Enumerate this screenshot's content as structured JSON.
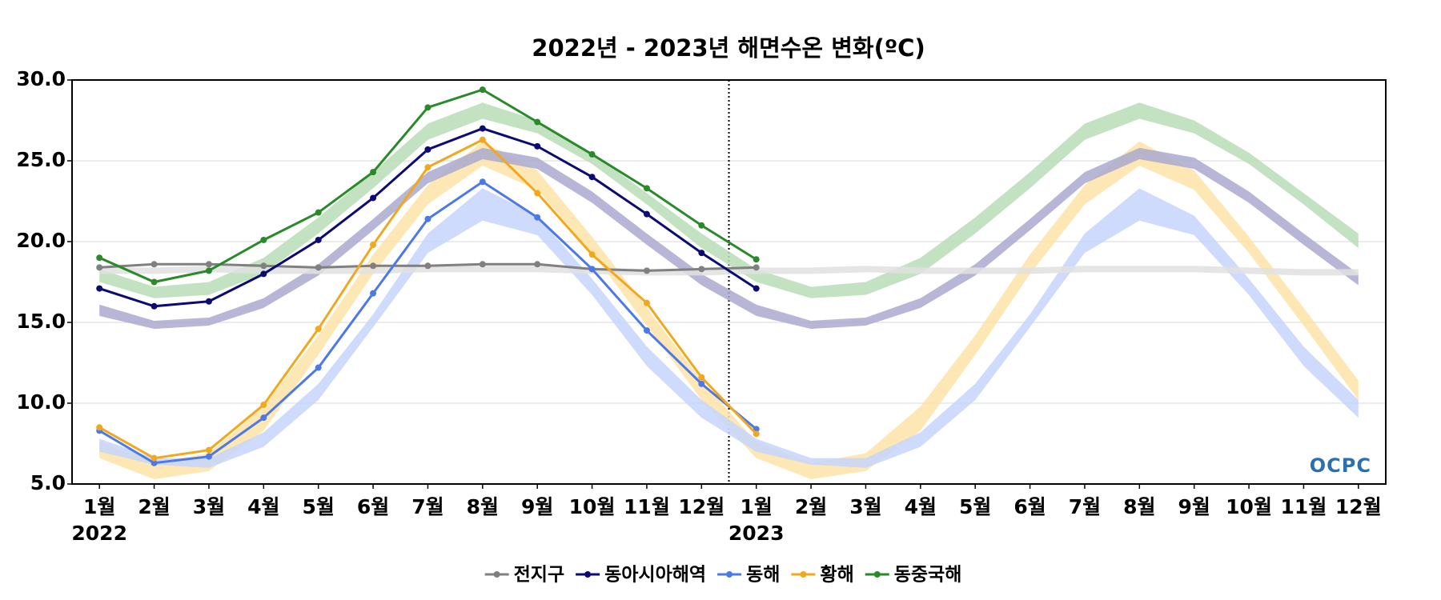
{
  "chart_data": {
    "type": "line",
    "title": "2022년 - 2023년 해면수온 변화(ºC)",
    "categories": [
      "1월",
      "2월",
      "3월",
      "4월",
      "5월",
      "6월",
      "7월",
      "8월",
      "9월",
      "10월",
      "11월",
      "12월",
      "1월",
      "2월",
      "3월",
      "4월",
      "5월",
      "6월",
      "7월",
      "8월",
      "9월",
      "10월",
      "11월",
      "12월"
    ],
    "groups": [
      "2022",
      "2023"
    ],
    "ylim": [
      5,
      30
    ],
    "yticks": [
      {
        "value": 5,
        "label": "5.0"
      },
      {
        "value": 10,
        "label": "10.0"
      },
      {
        "value": 15,
        "label": "15.0"
      },
      {
        "value": 20,
        "label": "20.0"
      },
      {
        "value": 25,
        "label": "25.0"
      },
      {
        "value": 30,
        "label": "30.0"
      }
    ],
    "grid": true,
    "legend": "bottom",
    "logo": "OCPC",
    "bands": [
      {
        "color": "#b9ddb6",
        "lower": [
          17.5,
          16.5,
          16.7,
          18.0,
          20.5,
          23.3,
          26.3,
          27.6,
          26.7,
          24.8,
          22.3,
          19.6,
          17.5,
          16.5,
          16.7,
          18.0,
          20.5,
          23.3,
          26.3,
          27.6,
          26.7,
          24.8,
          22.3,
          19.6
        ],
        "upper": [
          18.3,
          17.2,
          17.5,
          19.0,
          21.5,
          24.3,
          27.3,
          28.6,
          27.5,
          25.5,
          23.0,
          20.5,
          18.3,
          17.2,
          17.5,
          19.0,
          21.5,
          24.3,
          27.3,
          28.6,
          27.5,
          25.5,
          23.0,
          20.5
        ]
      },
      {
        "color": "#fde3a8",
        "lower": [
          6.6,
          5.3,
          5.8,
          8.3,
          13.0,
          18.0,
          22.3,
          24.7,
          23.2,
          19.3,
          14.8,
          10.2,
          6.6,
          5.3,
          5.8,
          8.3,
          13.0,
          18.0,
          22.3,
          24.7,
          23.2,
          19.3,
          14.8,
          10.2
        ],
        "upper": [
          7.6,
          6.3,
          6.9,
          9.8,
          14.2,
          19.2,
          23.5,
          26.2,
          24.4,
          20.3,
          15.9,
          11.4,
          7.6,
          6.3,
          6.9,
          9.8,
          14.2,
          19.2,
          23.5,
          26.2,
          24.4,
          20.3,
          15.9,
          11.4
        ]
      },
      {
        "color": "#c6d5fb",
        "lower": [
          7.0,
          6.2,
          6.0,
          7.3,
          10.2,
          14.7,
          19.3,
          21.3,
          20.4,
          16.7,
          12.3,
          9.1,
          7.0,
          6.2,
          6.0,
          7.3,
          10.2,
          14.7,
          19.3,
          21.3,
          20.4,
          16.7,
          12.3,
          9.1
        ],
        "upper": [
          7.8,
          6.6,
          6.6,
          8.2,
          11.2,
          15.5,
          20.5,
          23.3,
          21.6,
          17.7,
          13.5,
          10.2,
          7.8,
          6.6,
          6.6,
          8.2,
          11.2,
          15.5,
          20.5,
          23.3,
          21.6,
          17.7,
          13.5,
          10.2
        ]
      },
      {
        "color": "#aaa9cf",
        "lower": [
          15.4,
          14.6,
          14.8,
          15.9,
          17.9,
          20.7,
          23.6,
          25.1,
          24.5,
          22.4,
          19.8,
          17.3,
          15.4,
          14.6,
          14.8,
          15.9,
          17.9,
          20.7,
          23.6,
          25.1,
          24.5,
          22.4,
          19.8,
          17.3
        ],
        "upper": [
          16.1,
          15.1,
          15.3,
          16.5,
          18.6,
          21.4,
          24.3,
          25.8,
          25.2,
          23.1,
          20.5,
          18.0,
          16.1,
          15.1,
          15.3,
          16.5,
          18.6,
          21.4,
          24.3,
          25.8,
          25.2,
          23.1,
          20.5,
          18.0
        ]
      },
      {
        "color": "#e0e0e0",
        "lower": [
          18.0,
          18.0,
          18.1,
          18.0,
          18.0,
          18.0,
          18.1,
          18.1,
          18.1,
          18.0,
          17.9,
          17.9,
          18.0,
          18.0,
          18.1,
          18.0,
          18.0,
          18.0,
          18.1,
          18.1,
          18.1,
          18.0,
          17.9,
          17.9
        ],
        "upper": [
          18.4,
          18.4,
          18.5,
          18.4,
          18.4,
          18.4,
          18.5,
          18.5,
          18.5,
          18.4,
          18.3,
          18.3,
          18.4,
          18.4,
          18.5,
          18.4,
          18.4,
          18.4,
          18.5,
          18.5,
          18.5,
          18.4,
          18.3,
          18.3
        ]
      }
    ],
    "series": [
      {
        "name": "전지구",
        "color": "#808080",
        "values": [
          18.4,
          18.6,
          18.6,
          18.5,
          18.4,
          18.5,
          18.5,
          18.6,
          18.6,
          18.3,
          18.2,
          18.3,
          18.4,
          null,
          null,
          null,
          null,
          null,
          null,
          null,
          null,
          null,
          null,
          null
        ]
      },
      {
        "name": "동아시아해역",
        "color": "#0b0b73",
        "values": [
          17.1,
          16.0,
          16.3,
          18.0,
          20.1,
          22.7,
          25.7,
          27.0,
          25.9,
          24.0,
          21.7,
          19.3,
          17.1,
          null,
          null,
          null,
          null,
          null,
          null,
          null,
          null,
          null,
          null,
          null
        ]
      },
      {
        "name": "동해",
        "color": "#4d79e8",
        "values": [
          8.3,
          6.3,
          6.7,
          9.1,
          12.2,
          16.8,
          21.4,
          23.7,
          21.5,
          18.3,
          14.5,
          11.2,
          8.4,
          null,
          null,
          null,
          null,
          null,
          null,
          null,
          null,
          null,
          null,
          null
        ]
      },
      {
        "name": "황해",
        "color": "#f2a81d",
        "values": [
          8.5,
          6.6,
          7.1,
          9.9,
          14.6,
          19.8,
          24.6,
          26.3,
          23.0,
          19.2,
          16.2,
          11.6,
          8.1,
          null,
          null,
          null,
          null,
          null,
          null,
          null,
          null,
          null,
          null,
          null
        ]
      },
      {
        "name": "동중국해",
        "color": "#2a8a2a",
        "values": [
          19.0,
          17.5,
          18.2,
          20.1,
          21.8,
          24.3,
          28.3,
          29.4,
          27.4,
          25.4,
          23.3,
          21.0,
          18.9,
          null,
          null,
          null,
          null,
          null,
          null,
          null,
          null,
          null,
          null,
          null
        ]
      }
    ]
  }
}
